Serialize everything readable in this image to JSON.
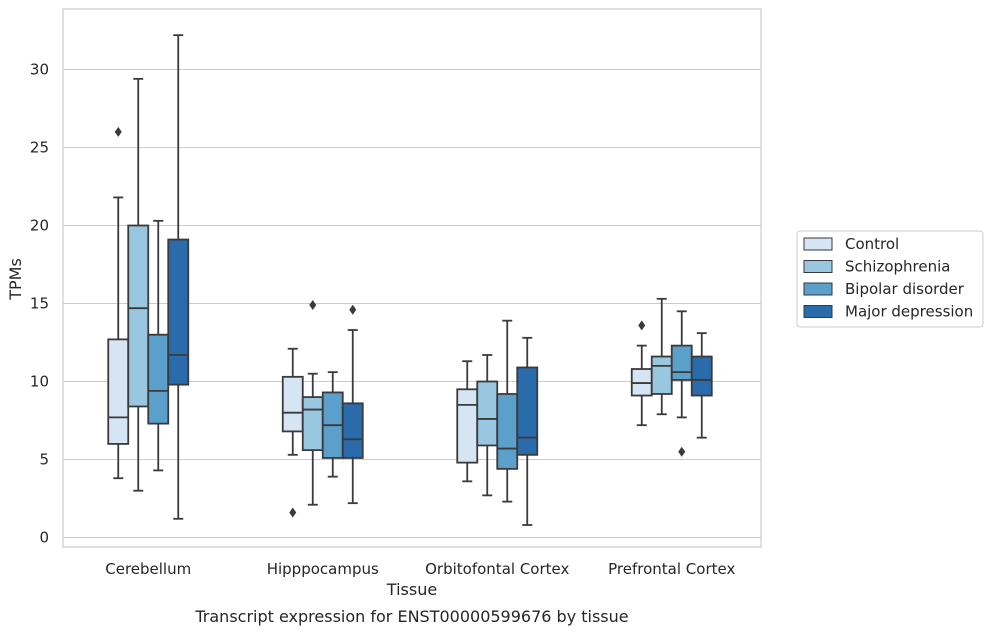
{
  "chart_data": {
    "type": "box",
    "xlabel": "Tissue",
    "ylabel": "TPMs",
    "caption": "Transcript expression for ENST00000599676 by tissue",
    "ylim": [
      -0.6,
      33.8
    ],
    "yticks": [
      0,
      5,
      10,
      15,
      20,
      25,
      30
    ],
    "grid": "horizontal",
    "legend_position": "right",
    "categories": [
      "Cerebellum",
      "Hipppocampus",
      "Orbitofontal Cortex",
      "Prefrontal Cortex"
    ],
    "series": [
      {
        "name": "Control",
        "color": "#d6e5f3",
        "boxes": [
          {
            "whislo": 3.8,
            "q1": 6.0,
            "med": 7.7,
            "q3": 12.7,
            "whishi": 21.8,
            "fliers": [
              26.0
            ]
          },
          {
            "whislo": 5.3,
            "q1": 6.8,
            "med": 8.0,
            "q3": 10.3,
            "whishi": 12.1,
            "fliers": [
              1.6
            ]
          },
          {
            "whislo": 3.6,
            "q1": 4.8,
            "med": 8.5,
            "q3": 9.5,
            "whishi": 11.3,
            "fliers": []
          },
          {
            "whislo": 7.2,
            "q1": 9.1,
            "med": 9.9,
            "q3": 10.8,
            "whishi": 12.3,
            "fliers": [
              13.6
            ]
          }
        ]
      },
      {
        "name": "Schizophrenia",
        "color": "#9ac7e0",
        "boxes": [
          {
            "whislo": 3.0,
            "q1": 8.4,
            "med": 14.7,
            "q3": 20.0,
            "whishi": 29.4,
            "fliers": []
          },
          {
            "whislo": 2.1,
            "q1": 5.6,
            "med": 8.2,
            "q3": 9.0,
            "whishi": 10.5,
            "fliers": [
              14.9
            ]
          },
          {
            "whislo": 2.7,
            "q1": 5.9,
            "med": 7.6,
            "q3": 10.0,
            "whishi": 11.7,
            "fliers": []
          },
          {
            "whislo": 7.9,
            "q1": 9.2,
            "med": 11.0,
            "q3": 11.6,
            "whishi": 15.3,
            "fliers": []
          }
        ]
      },
      {
        "name": "Bipolar disorder",
        "color": "#5b9fcb",
        "boxes": [
          {
            "whislo": 4.3,
            "q1": 7.3,
            "med": 9.4,
            "q3": 13.0,
            "whishi": 20.3,
            "fliers": []
          },
          {
            "whislo": 3.9,
            "q1": 5.1,
            "med": 7.2,
            "q3": 9.3,
            "whishi": 10.6,
            "fliers": []
          },
          {
            "whislo": 2.3,
            "q1": 4.4,
            "med": 5.7,
            "q3": 9.2,
            "whishi": 13.9,
            "fliers": []
          },
          {
            "whislo": 7.7,
            "q1": 10.1,
            "med": 10.6,
            "q3": 12.3,
            "whishi": 14.5,
            "fliers": [
              5.5
            ]
          }
        ]
      },
      {
        "name": "Major depression",
        "color": "#2a6bab",
        "boxes": [
          {
            "whislo": 1.2,
            "q1": 9.8,
            "med": 11.7,
            "q3": 19.1,
            "whishi": 32.2,
            "fliers": []
          },
          {
            "whislo": 2.2,
            "q1": 5.1,
            "med": 6.3,
            "q3": 8.6,
            "whishi": 13.3,
            "fliers": [
              14.6
            ]
          },
          {
            "whislo": 0.8,
            "q1": 5.3,
            "med": 6.4,
            "q3": 10.9,
            "whishi": 12.8,
            "fliers": []
          },
          {
            "whislo": 6.4,
            "q1": 9.1,
            "med": 10.1,
            "q3": 11.6,
            "whishi": 13.1,
            "fliers": []
          }
        ]
      }
    ]
  }
}
